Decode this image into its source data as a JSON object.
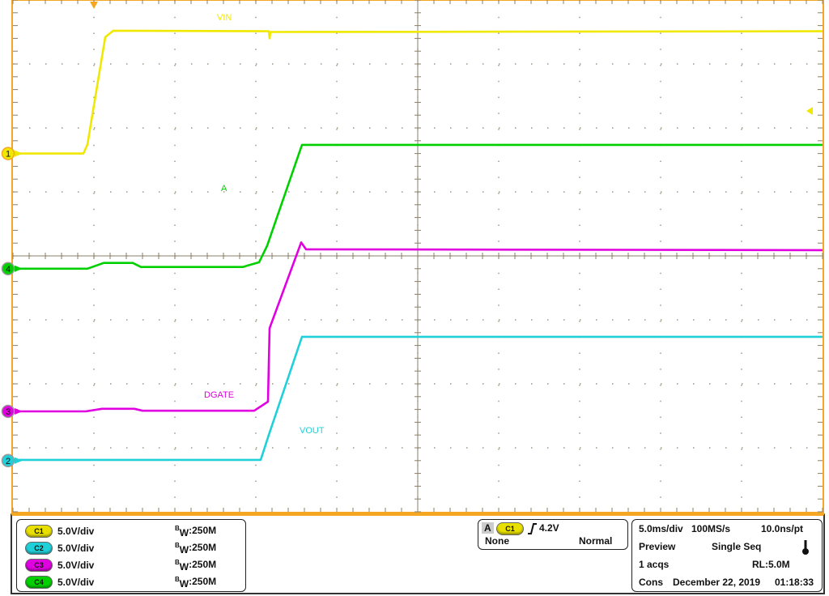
{
  "chart_data": {
    "type": "line",
    "xlabel": "",
    "ylabel": "",
    "time_per_div_ms": 5.0,
    "divisions": {
      "horizontal": 10,
      "vertical": 8
    },
    "xlim_ms": [
      -5,
      45
    ],
    "grid": true,
    "trigger_position_ms": 0,
    "series": [
      {
        "name": "VIN",
        "channel": "1",
        "color": "#f0e800",
        "volts_per_div": 5.0,
        "ground_div": 1.6,
        "points": [
          [
            -5,
            0
          ],
          [
            -0.65,
            0
          ],
          [
            -0.4,
            0.7
          ],
          [
            0.7,
            9.1
          ],
          [
            1.2,
            9.6
          ],
          [
            10.8,
            9.56
          ],
          [
            10.85,
            9.0
          ],
          [
            10.9,
            9.5
          ],
          [
            45,
            9.56
          ]
        ]
      },
      {
        "name": "A",
        "channel": "4",
        "color": "#00d000",
        "volts_per_div": 5.0,
        "ground_div": -0.2,
        "points": [
          [
            -5,
            0
          ],
          [
            -0.4,
            0
          ],
          [
            0.6,
            0.45
          ],
          [
            2.4,
            0.45
          ],
          [
            2.9,
            0.13
          ],
          [
            9.2,
            0.13
          ],
          [
            9.5,
            0.25
          ],
          [
            10.2,
            0.5
          ],
          [
            10.7,
            1.8
          ],
          [
            12.85,
            9.68
          ],
          [
            45,
            9.68
          ]
        ]
      },
      {
        "name": "DGATE",
        "channel": "3",
        "color": "#e000e0",
        "volts_per_div": 5.0,
        "ground_div": -2.43,
        "points": [
          [
            -5,
            0
          ],
          [
            -0.5,
            0
          ],
          [
            0.5,
            0.2
          ],
          [
            2.5,
            0.2
          ],
          [
            3.0,
            0.05
          ],
          [
            9.9,
            0.05
          ],
          [
            10.75,
            0.76
          ],
          [
            10.85,
            6.5
          ],
          [
            12.8,
            13.2
          ],
          [
            13.1,
            12.66
          ],
          [
            45,
            12.6
          ]
        ]
      },
      {
        "name": "VOUT",
        "channel": "2",
        "color": "#20d0d8",
        "volts_per_div": 5.0,
        "ground_div": -3.2,
        "points": [
          [
            -5,
            0.06
          ],
          [
            10.3,
            0.06
          ],
          [
            10.8,
            2.0
          ],
          [
            12.85,
            9.68
          ],
          [
            45,
            9.68
          ]
        ]
      }
    ]
  },
  "channels": [
    {
      "id": "C1",
      "color": "#e8e000",
      "scale": "5.0V/div",
      "bw": "250M"
    },
    {
      "id": "C2",
      "color": "#20d0d8",
      "scale": "5.0V/div",
      "bw": "250M"
    },
    {
      "id": "C3",
      "color": "#e000e0",
      "scale": "5.0V/div",
      "bw": "250M"
    },
    {
      "id": "C4",
      "color": "#00d000",
      "scale": "5.0V/div",
      "bw": "250M"
    }
  ],
  "bw_prefix": {
    "b": "B",
    "w": "W",
    "colon": ":"
  },
  "trigger": {
    "label": "A",
    "source": "C1",
    "slope_icon": "rising-edge",
    "level": "4.2V",
    "coupling": "None",
    "mode": "Normal"
  },
  "acquisition": {
    "timebase": "5.0ms/div",
    "sample_rate": "100MS/s",
    "resolution": "10.0ns/pt",
    "state": "Preview",
    "run_mode": "Single Seq",
    "acqs": "1 acqs",
    "record_length": "RL:5.0M",
    "display": "Cons",
    "date": "December 22, 2019",
    "time": "01:18:33"
  },
  "colors": {
    "frame": "#f5a623",
    "grid": "#8a7f6a"
  }
}
